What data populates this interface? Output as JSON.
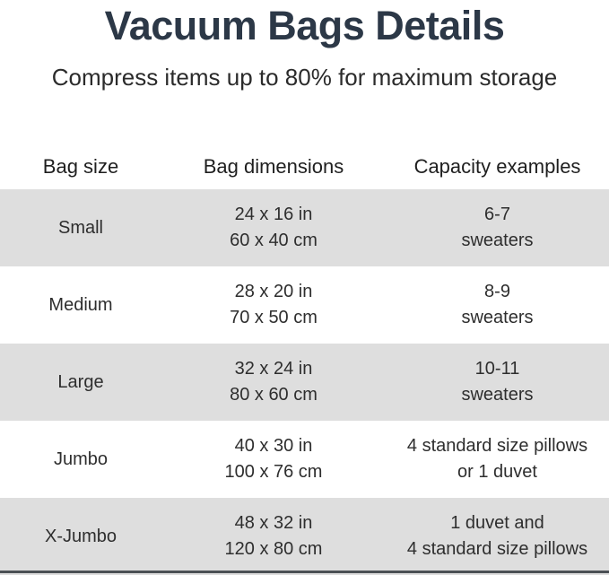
{
  "header": {
    "title": "Vacuum Bags Details",
    "subtitle": "Compress items up to 80% for maximum storage"
  },
  "table": {
    "columns": [
      "Bag size",
      "Bag dimensions",
      "Capacity examples"
    ],
    "rows": [
      {
        "size": "Small",
        "dim_in": "24 x 16 in",
        "dim_cm": "60 x 40 cm",
        "cap1": "6-7",
        "cap2": "sweaters"
      },
      {
        "size": "Medium",
        "dim_in": "28 x 20 in",
        "dim_cm": "70 x 50 cm",
        "cap1": "8-9",
        "cap2": "sweaters"
      },
      {
        "size": "Large",
        "dim_in": "32 x 24 in",
        "dim_cm": "80 x 60 cm",
        "cap1": "10-11",
        "cap2": "sweaters"
      },
      {
        "size": "Jumbo",
        "dim_in": "40 x 30 in",
        "dim_cm": "100 x 76 cm",
        "cap1": "4 standard size pillows",
        "cap2": "or 1 duvet"
      },
      {
        "size": "X-Jumbo",
        "dim_in": "48 x 32 in",
        "dim_cm": "120 x 80 cm",
        "cap1": "1 duvet and",
        "cap2": "4 standard size pillows"
      }
    ]
  },
  "colors": {
    "title_navy": "#2c3847",
    "body_text": "#2e2e2e",
    "row_stripe_gray": "#dedede",
    "bottom_bar_gray": "#4b5055"
  }
}
